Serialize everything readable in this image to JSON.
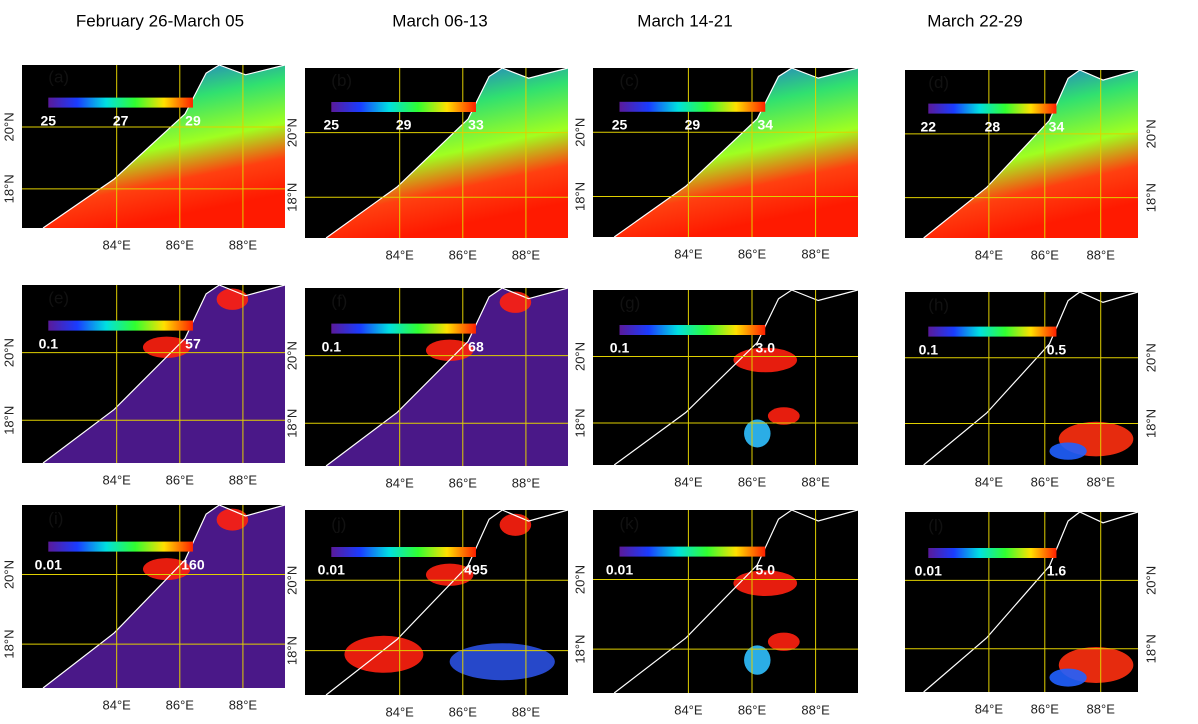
{
  "columns": [
    "February 26-March 05",
    "March 06-13",
    "March 14-21",
    "March 22-29"
  ],
  "panels": [
    {
      "label": "(a)",
      "colorbar": [
        "25",
        "27",
        "29"
      ],
      "x_ticks": [
        "84°E",
        "86°E",
        "88°E"
      ],
      "y_ticks": [
        "20°N",
        "18°N"
      ]
    },
    {
      "label": "(b)",
      "colorbar": [
        "25",
        "29",
        "33"
      ],
      "x_ticks": [
        "84°E",
        "86°E",
        "88°E"
      ],
      "y_ticks": [
        "20°N",
        "18°N"
      ]
    },
    {
      "label": "(c)",
      "colorbar": [
        "25",
        "29",
        "34"
      ],
      "x_ticks": [
        "84°E",
        "86°E",
        "88°E"
      ],
      "y_ticks": [
        "20°N",
        "18°N"
      ]
    },
    {
      "label": "(d)",
      "colorbar": [
        "22",
        "28",
        "34"
      ],
      "x_ticks": [
        "84°E",
        "86°E",
        "88°E"
      ],
      "y_ticks": [
        "20°N",
        "18°N"
      ]
    },
    {
      "label": "(e)",
      "colorbar": [
        "0.1",
        "57"
      ],
      "x_ticks": [
        "84°E",
        "86°E",
        "88°E"
      ],
      "y_ticks": [
        "20°N",
        "18°N"
      ]
    },
    {
      "label": "(f)",
      "colorbar": [
        "0.1",
        "68"
      ],
      "x_ticks": [
        "84°E",
        "86°E",
        "88°E"
      ],
      "y_ticks": [
        "20°N",
        "18°N"
      ]
    },
    {
      "label": "(g)",
      "colorbar": [
        "0.1",
        "3.0"
      ],
      "x_ticks": [
        "84°E",
        "86°E",
        "88°E"
      ],
      "y_ticks": [
        "20°N",
        "18°N"
      ]
    },
    {
      "label": "(h)",
      "colorbar": [
        "0.1",
        "0.5"
      ],
      "x_ticks": [
        "84°E",
        "86°E",
        "88°E"
      ],
      "y_ticks": [
        "20°N",
        "18°N"
      ]
    },
    {
      "label": "(i)",
      "colorbar": [
        "0.01",
        "160"
      ],
      "x_ticks": [
        "84°E",
        "86°E",
        "88°E"
      ],
      "y_ticks": [
        "20°N",
        "18°N"
      ]
    },
    {
      "label": "(j)",
      "colorbar": [
        "0.01",
        "495"
      ],
      "x_ticks": [
        "84°E",
        "86°E",
        "88°E"
      ],
      "y_ticks": [
        "20°N",
        "18°N"
      ]
    },
    {
      "label": "(k)",
      "colorbar": [
        "0.01",
        "5.0"
      ],
      "x_ticks": [
        "84°E",
        "86°E",
        "88°E"
      ],
      "y_ticks": [
        "20°N",
        "18°N"
      ]
    },
    {
      "label": "(l)",
      "colorbar": [
        "0.01",
        "1.6"
      ],
      "x_ticks": [
        "84°E",
        "86°E",
        "88°E"
      ],
      "y_ticks": [
        "20°N",
        "18°N"
      ]
    }
  ]
}
